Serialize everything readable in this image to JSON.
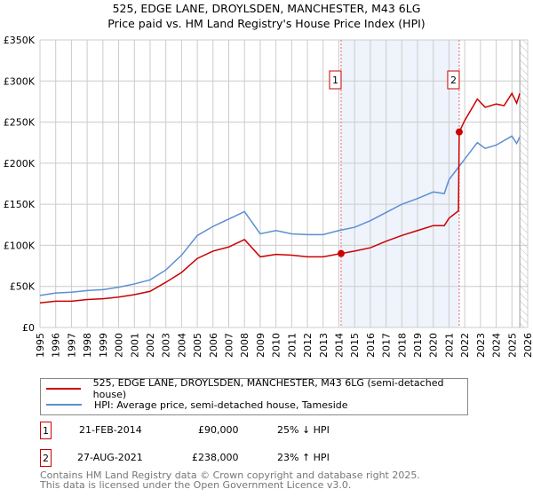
{
  "title": "525, EDGE LANE, DROYLSDEN, MANCHESTER, M43 6LG",
  "subtitle": "Price paid vs. HM Land Registry's House Price Index (HPI)",
  "chart_data": {
    "type": "line",
    "ylim": [
      0,
      350000
    ],
    "xlim": [
      1995,
      2026
    ],
    "yticks": [
      0,
      50000,
      100000,
      150000,
      200000,
      250000,
      300000,
      350000
    ],
    "ytick_labels": [
      "£0",
      "£50K",
      "£100K",
      "£150K",
      "£200K",
      "£250K",
      "£300K",
      "£350K"
    ],
    "xticks": [
      1995,
      1996,
      1997,
      1998,
      1999,
      2000,
      2001,
      2002,
      2003,
      2004,
      2005,
      2006,
      2007,
      2008,
      2009,
      2010,
      2011,
      2012,
      2013,
      2014,
      2015,
      2016,
      2017,
      2018,
      2019,
      2020,
      2021,
      2022,
      2023,
      2024,
      2025,
      2026
    ],
    "grid": true,
    "shaded_range": [
      2014.14,
      2021.65
    ],
    "hatched_from": 2025.5,
    "colors": {
      "price": "#cc0000",
      "hpi": "#5b8fd1",
      "shade": "#eef3fc"
    },
    "series": [
      {
        "name": "525, EDGE LANE, DROYLSDEN, MANCHESTER, M43 6LG (semi-detached house)",
        "color": "#cc0000",
        "x": [
          1995,
          1996,
          1997,
          1998,
          1999,
          2000,
          2001,
          2002,
          2003,
          2004,
          2005,
          2006,
          2007,
          2008,
          2009,
          2010,
          2011,
          2012,
          2013,
          2014.14,
          2015,
          2016,
          2017,
          2018,
          2019,
          2020,
          2020.7,
          2021,
          2021.6,
          2021.65,
          2022,
          2022.8,
          2023.3,
          2024,
          2024.5,
          2025,
          2025.3,
          2025.5
        ],
        "y": [
          30000,
          32000,
          32000,
          34000,
          35000,
          37000,
          40000,
          44000,
          55000,
          67000,
          84000,
          93000,
          98000,
          107000,
          86000,
          89000,
          88000,
          86000,
          86000,
          90000,
          93000,
          97000,
          105000,
          112000,
          118000,
          124000,
          124000,
          133000,
          142000,
          238000,
          252000,
          278000,
          268000,
          272000,
          270000,
          285000,
          273000,
          285000
        ]
      },
      {
        "name": "HPI: Average price, semi-detached house, Tameside",
        "color": "#5b8fd1",
        "x": [
          1995,
          1996,
          1997,
          1998,
          1999,
          2000,
          2001,
          2002,
          2003,
          2004,
          2005,
          2006,
          2007,
          2008,
          2009,
          2010,
          2011,
          2012,
          2013,
          2014,
          2015,
          2016,
          2017,
          2018,
          2019,
          2020,
          2020.7,
          2021,
          2021.6,
          2022,
          2022.8,
          2023.3,
          2024,
          2025,
          2025.3,
          2025.5
        ],
        "y": [
          39000,
          42000,
          43000,
          45000,
          46000,
          49000,
          53000,
          58000,
          70000,
          88000,
          112000,
          123000,
          132000,
          141000,
          114000,
          118000,
          114000,
          113000,
          113000,
          118000,
          122000,
          130000,
          140000,
          150000,
          157000,
          165000,
          163000,
          180000,
          195000,
          205000,
          225000,
          218000,
          222000,
          233000,
          224000,
          232000
        ]
      }
    ],
    "markers": [
      {
        "label": "1",
        "x": 2014.14,
        "y": 90000
      },
      {
        "label": "2",
        "x": 2021.65,
        "y": 238000
      }
    ]
  },
  "legend": {
    "items": [
      "525, EDGE LANE, DROYLSDEN, MANCHESTER, M43 6LG (semi-detached house)",
      "HPI: Average price, semi-detached house, Tameside"
    ]
  },
  "transactions": [
    {
      "num": "1",
      "date": "21-FEB-2014",
      "price": "£90,000",
      "hpi": "25% ↓ HPI"
    },
    {
      "num": "2",
      "date": "27-AUG-2021",
      "price": "£238,000",
      "hpi": "23% ↑ HPI"
    }
  ],
  "footer": {
    "line1": "Contains HM Land Registry data © Crown copyright and database right 2025.",
    "line2": "This data is licensed under the Open Government Licence v3.0."
  }
}
